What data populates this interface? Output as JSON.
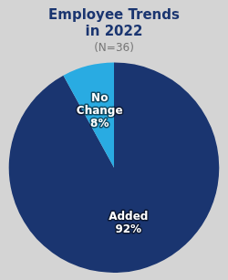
{
  "chart_data": {
    "type": "pie",
    "title": [
      "Employee Trends",
      "in 2022"
    ],
    "subtitle": "(N=36)",
    "categories": [
      "Added",
      "No\nChange"
    ],
    "values": [
      92,
      8
    ],
    "value_labels": [
      "92%",
      "8%"
    ],
    "colors": [
      "#1a3570",
      "#29abe2"
    ],
    "data_labels": true,
    "legend": false
  }
}
